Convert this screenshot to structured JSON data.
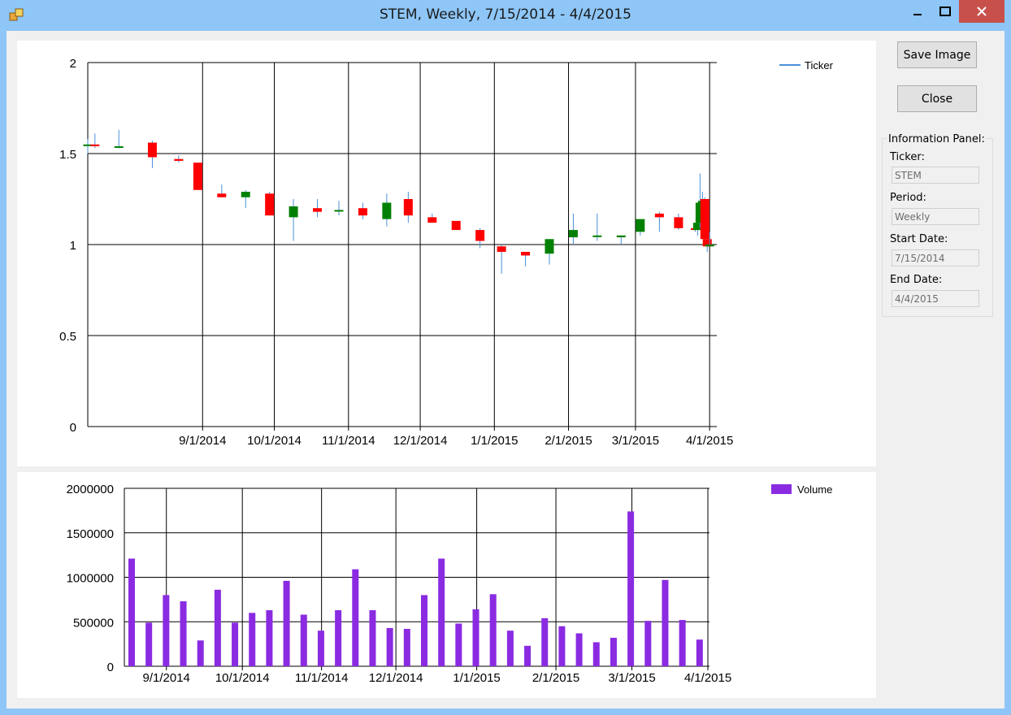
{
  "window": {
    "title": "STEM, Weekly, 7/15/2014 - 4/4/2015",
    "controls": {
      "minimize_icon": "minimize-icon",
      "maximize_icon": "maximize-icon",
      "close_icon": "close-icon"
    }
  },
  "buttons": {
    "save_label": "Save Image",
    "close_label": "Close"
  },
  "info_panel": {
    "title": "Information Panel:",
    "ticker_label": "Ticker:",
    "ticker_value": "STEM",
    "period_label": "Period:",
    "period_value": "Weekly",
    "start_label": "Start Date:",
    "start_value": "7/15/2014",
    "end_label": "End Date:",
    "end_value": "4/4/2015"
  },
  "colors": {
    "up": "#008000",
    "down": "#ff0000",
    "wick": "#4a90d9",
    "volume": "#8a2be2",
    "ticker_legend": "#4a90d9"
  },
  "chart_data": [
    {
      "type": "candlestick",
      "legend": "Ticker",
      "xlim": [
        "2014-07-15",
        "2015-04-04"
      ],
      "ylim": [
        0,
        2
      ],
      "yticks": [
        "0",
        "0.5",
        "1",
        "1.5",
        "2"
      ],
      "xticks": [
        "9/1/2014",
        "10/1/2014",
        "11/1/2014",
        "12/1/2014",
        "1/1/2015",
        "2/1/2015",
        "3/1/2015",
        "4/1/2015"
      ],
      "grid": true,
      "candles": [
        {
          "date": "2014-07-15",
          "open": 1.55,
          "high": 1.58,
          "low": 1.5,
          "close": 1.55
        },
        {
          "date": "2014-07-18",
          "open": 1.55,
          "high": 1.61,
          "low": 1.53,
          "close": 1.54
        },
        {
          "date": "2014-07-28",
          "open": 1.54,
          "high": 1.63,
          "low": 1.53,
          "close": 1.54
        },
        {
          "date": "2014-08-11",
          "open": 1.56,
          "high": 1.57,
          "low": 1.42,
          "close": 1.48
        },
        {
          "date": "2014-08-22",
          "open": 1.47,
          "high": 1.49,
          "low": 1.45,
          "close": 1.46
        },
        {
          "date": "2014-08-30",
          "open": 1.45,
          "high": 1.45,
          "low": 1.3,
          "close": 1.3
        },
        {
          "date": "2014-09-09",
          "open": 1.28,
          "high": 1.33,
          "low": 1.26,
          "close": 1.26
        },
        {
          "date": "2014-09-19",
          "open": 1.26,
          "high": 1.3,
          "low": 1.2,
          "close": 1.29
        },
        {
          "date": "2014-09-29",
          "open": 1.28,
          "high": 1.29,
          "low": 1.16,
          "close": 1.16
        },
        {
          "date": "2014-10-09",
          "open": 1.15,
          "high": 1.25,
          "low": 1.02,
          "close": 1.21
        },
        {
          "date": "2014-10-19",
          "open": 1.2,
          "high": 1.25,
          "low": 1.15,
          "close": 1.18
        },
        {
          "date": "2014-10-28",
          "open": 1.19,
          "high": 1.24,
          "low": 1.16,
          "close": 1.19
        },
        {
          "date": "2014-11-07",
          "open": 1.2,
          "high": 1.23,
          "low": 1.14,
          "close": 1.16
        },
        {
          "date": "2014-11-17",
          "open": 1.14,
          "high": 1.28,
          "low": 1.1,
          "close": 1.23
        },
        {
          "date": "2014-11-26",
          "open": 1.25,
          "high": 1.29,
          "low": 1.12,
          "close": 1.16
        },
        {
          "date": "2014-12-06",
          "open": 1.15,
          "high": 1.17,
          "low": 1.12,
          "close": 1.12
        },
        {
          "date": "2014-12-16",
          "open": 1.13,
          "high": 1.13,
          "low": 1.08,
          "close": 1.08
        },
        {
          "date": "2014-12-26",
          "open": 1.08,
          "high": 1.09,
          "low": 0.98,
          "close": 1.02
        },
        {
          "date": "2015-01-04",
          "open": 0.99,
          "high": 1.0,
          "low": 0.84,
          "close": 0.96
        },
        {
          "date": "2015-01-14",
          "open": 0.96,
          "high": 0.96,
          "low": 0.88,
          "close": 0.94
        },
        {
          "date": "2015-01-24",
          "open": 0.95,
          "high": 1.03,
          "low": 0.89,
          "close": 1.03
        },
        {
          "date": "2015-02-03",
          "open": 1.04,
          "high": 1.17,
          "low": 1.0,
          "close": 1.08
        },
        {
          "date": "2015-02-13",
          "open": 1.05,
          "high": 1.17,
          "low": 1.02,
          "close": 1.05
        },
        {
          "date": "2015-02-23",
          "open": 1.04,
          "high": 1.05,
          "low": 1.0,
          "close": 1.05
        },
        {
          "date": "2015-03-03",
          "open": 1.07,
          "high": 1.14,
          "low": 1.05,
          "close": 1.14
        },
        {
          "date": "2015-03-11",
          "open": 1.17,
          "high": 1.18,
          "low": 1.07,
          "close": 1.15
        },
        {
          "date": "2015-03-19",
          "open": 1.15,
          "high": 1.17,
          "low": 1.08,
          "close": 1.09
        },
        {
          "date": "2015-03-26",
          "open": 1.09,
          "high": 1.1,
          "low": 1.07,
          "close": 1.08
        },
        {
          "date": "2015-03-27",
          "open": 1.08,
          "high": 1.12,
          "low": 1.05,
          "close": 1.12
        },
        {
          "date": "2015-03-28",
          "open": 1.12,
          "high": 1.39,
          "low": 1.09,
          "close": 1.23
        },
        {
          "date": "2015-03-29",
          "open": 1.23,
          "high": 1.29,
          "low": 1.16,
          "close": 1.24
        },
        {
          "date": "2015-03-30",
          "open": 1.25,
          "high": 1.26,
          "low": 1.01,
          "close": 1.03
        },
        {
          "date": "2015-03-31",
          "open": 1.03,
          "high": 1.03,
          "low": 0.96,
          "close": 0.99
        },
        {
          "date": "2015-04-01",
          "open": 0.99,
          "high": 1.07,
          "low": 0.99,
          "close": 1.0
        }
      ]
    },
    {
      "type": "bar",
      "legend": "Volume",
      "ylim": [
        0,
        2000000
      ],
      "yticks": [
        "0",
        "500000",
        "1000000",
        "1500000",
        "2000000"
      ],
      "xticks": [
        "9/1/2014",
        "10/1/2014",
        "11/1/2014",
        "12/1/2014",
        "1/1/2015",
        "2/1/2015",
        "3/1/2015",
        "4/1/2015"
      ],
      "grid": true,
      "values": [
        1210000,
        490000,
        800000,
        730000,
        290000,
        860000,
        490000,
        600000,
        630000,
        960000,
        580000,
        400000,
        630000,
        1090000,
        630000,
        430000,
        420000,
        800000,
        1210000,
        480000,
        640000,
        810000,
        400000,
        230000,
        540000,
        450000,
        370000,
        270000,
        320000,
        1740000,
        510000,
        970000,
        520000,
        300000
      ]
    }
  ]
}
